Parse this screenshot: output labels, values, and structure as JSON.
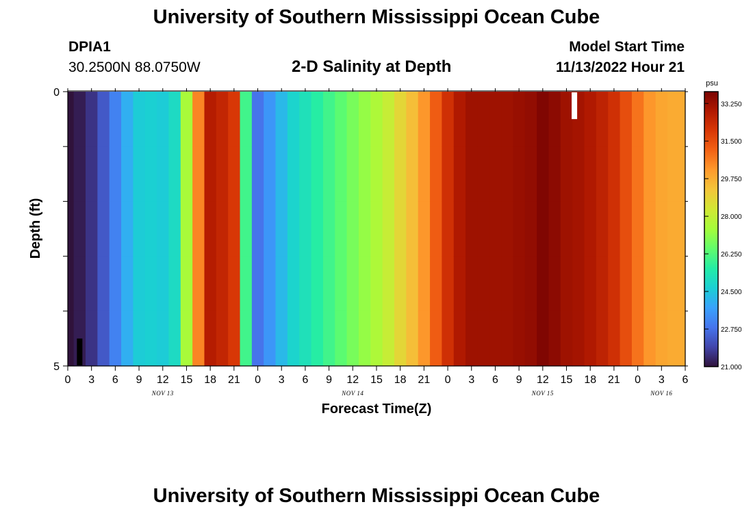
{
  "header": {
    "title": "University of Southern Mississippi Ocean Cube",
    "station_id": "DPIA1",
    "station_coords": "30.2500N  88.0750W",
    "subtitle": "2-D Salinity at Depth",
    "model_start_label": "Model Start Time",
    "model_start_value": "11/13/2022 Hour 21"
  },
  "footer": {
    "title": "University of Southern Mississippi Ocean Cube"
  },
  "chart_data": {
    "type": "heatmap",
    "title": "2-D Salinity at Depth",
    "xlabel": "Forecast Time(Z)",
    "ylabel": "Depth (ft)",
    "ylim": [
      0,
      5
    ],
    "y_tick_labels": [
      "0",
      "5"
    ],
    "x_hours_range": [
      0,
      78
    ],
    "x_tick_labels": [
      "0",
      "3",
      "6",
      "9",
      "12",
      "15",
      "18",
      "21",
      "0",
      "3",
      "6",
      "9",
      "12",
      "15",
      "18",
      "21",
      "0",
      "3",
      "6",
      "9",
      "12",
      "15",
      "18",
      "21",
      "0",
      "3",
      "6"
    ],
    "x_day_labels": [
      {
        "label": "NOV 13",
        "hour": 12
      },
      {
        "label": "NOV 14",
        "hour": 36
      },
      {
        "label": "NOV 15",
        "hour": 60
      },
      {
        "label": "NOV 16",
        "hour": 75
      }
    ],
    "colorbar": {
      "unit": "psu",
      "min": 21.0,
      "max": 33.8,
      "tick_labels": [
        "21.000",
        "22.750",
        "24.500",
        "26.250",
        "28.000",
        "29.750",
        "31.500",
        "33.250"
      ],
      "colors": [
        "#30123b",
        "#4145ab",
        "#4675ed",
        "#39a2fc",
        "#1bcfd4",
        "#24eca6",
        "#61fc6c",
        "#a4fc3b",
        "#d1e834",
        "#f3c63a",
        "#fe9b2d",
        "#f36315",
        "#d93806",
        "#b11901",
        "#7a0402"
      ]
    },
    "depth_levels_ft": [
      0,
      1,
      2,
      3,
      4,
      5
    ],
    "hours": [
      0,
      1.5,
      3,
      4.5,
      6,
      7.5,
      9,
      10.5,
      12,
      13.5,
      15,
      16.5,
      18,
      19.5,
      21,
      22.5,
      24,
      25.5,
      27,
      28.5,
      30,
      31.5,
      33,
      34.5,
      36,
      37.5,
      39,
      40.5,
      42,
      43.5,
      45,
      46.5,
      48,
      49.5,
      51,
      52.5,
      54,
      55.5,
      57,
      58.5,
      60,
      61.5,
      63,
      64.5,
      66,
      67.5,
      69,
      70.5,
      72,
      73.5,
      75,
      76.5,
      78
    ],
    "salinity_psu": [
      21.0,
      21.2,
      21.6,
      22.3,
      23.1,
      24.0,
      24.6,
      24.7,
      24.6,
      25.0,
      27.5,
      30.5,
      32.8,
      32.5,
      32.0,
      26.0,
      22.8,
      23.5,
      24.2,
      24.8,
      25.2,
      25.6,
      26.0,
      26.4,
      26.8,
      27.2,
      27.6,
      28.1,
      28.8,
      29.4,
      30.2,
      31.2,
      32.2,
      32.9,
      33.2,
      33.2,
      33.2,
      33.2,
      33.3,
      33.4,
      33.7,
      33.5,
      33.2,
      33.1,
      32.9,
      32.6,
      32.2,
      31.5,
      30.8,
      30.2,
      29.9,
      29.8,
      29.8
    ],
    "missing_data": [
      {
        "hour": 1.5,
        "depth_ft": [
          4.5,
          5
        ]
      },
      {
        "hour": 64.0,
        "depth_ft": [
          0,
          0.5
        ]
      }
    ]
  }
}
